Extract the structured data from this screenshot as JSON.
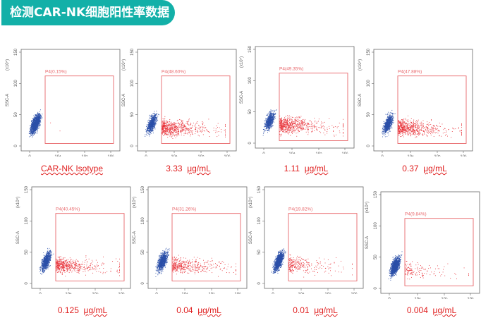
{
  "title": "检测CAR-NK细胞阳性率数据",
  "axis": {
    "y_label": "SSC-A",
    "y_scale": "(x10⁴)",
    "y_ticks": [
      "0",
      "50",
      "100",
      "150"
    ],
    "x_ticks": [
      "0",
      "10⁴",
      "10⁵",
      "10⁶"
    ]
  },
  "colors": {
    "banner": "#13b0a8",
    "gate": "#e8676b",
    "negative": "#2b4fa8",
    "positive": "#e8333a",
    "caption": "#e02020"
  },
  "plots": [
    {
      "gate": "P4(0.15%)",
      "pct": 0.15,
      "caption_value": "CAR-NK Isotype",
      "caption_unit": ""
    },
    {
      "gate": "P4(48.60%)",
      "pct": 48.6,
      "caption_value": "3.33",
      "caption_unit": "μg/mL"
    },
    {
      "gate": "P4(49.35%)",
      "pct": 49.35,
      "caption_value": "1.11",
      "caption_unit": "μg/mL"
    },
    {
      "gate": "P4(47.88%)",
      "pct": 47.88,
      "caption_value": "0.37",
      "caption_unit": "μg/mL"
    },
    {
      "gate": "P4(40.45%)",
      "pct": 40.45,
      "caption_value": "0.125",
      "caption_unit": "μg/mL"
    },
    {
      "gate": "P4(31.26%)",
      "pct": 31.26,
      "caption_value": "0.04",
      "caption_unit": "μg/mL"
    },
    {
      "gate": "P4(19.82%)",
      "pct": 19.82,
      "caption_value": "0.01",
      "caption_unit": "μg/mL"
    },
    {
      "gate": "P4(9.84%)",
      "pct": 9.84,
      "caption_value": "0.004",
      "caption_unit": "μg/mL"
    }
  ]
}
